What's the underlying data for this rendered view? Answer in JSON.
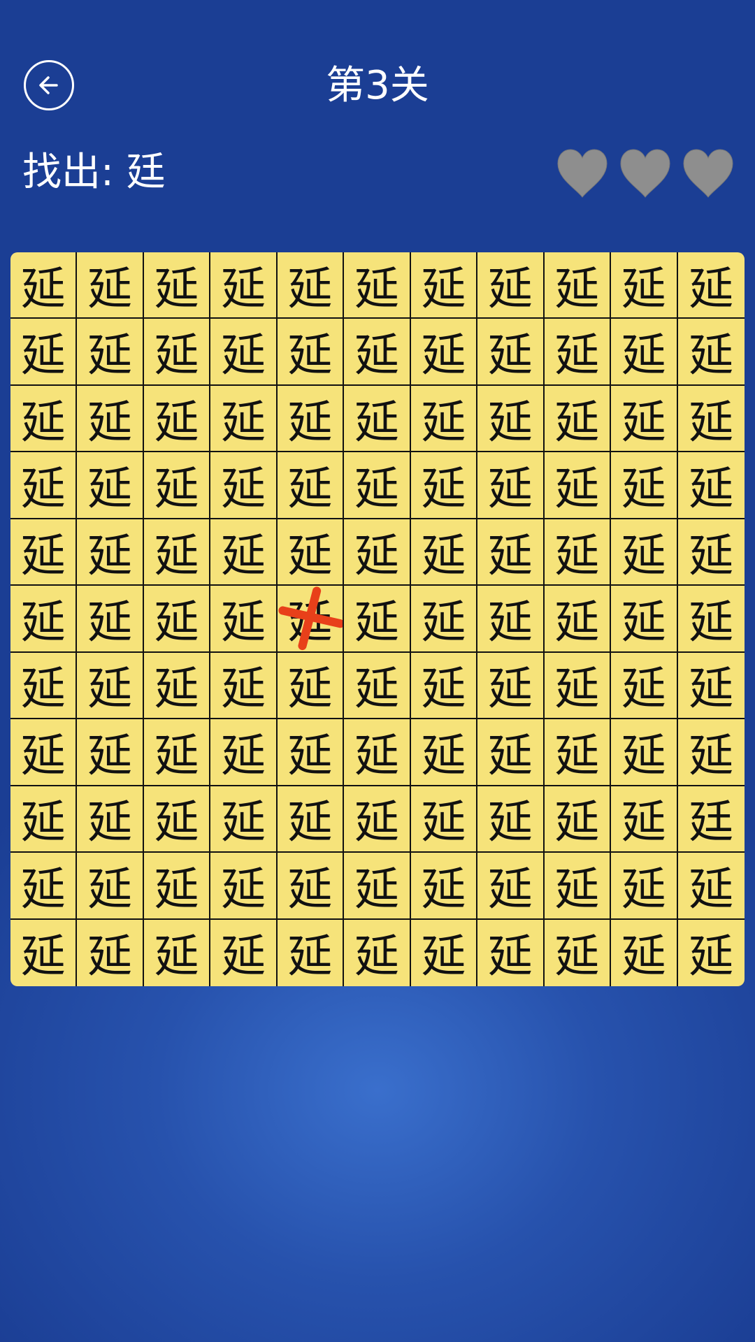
{
  "header": {
    "back_icon": "arrow-left-circle-icon",
    "title": "第3关"
  },
  "prompt": {
    "label": "找出: 廷",
    "target": "廷"
  },
  "lives": {
    "total": 3,
    "icon": "heart-icon",
    "color": "#8e8e8e"
  },
  "grid": {
    "rows": 11,
    "cols": 11,
    "base_char": "延",
    "target_char": "廷",
    "cells": [
      [
        "延",
        "延",
        "延",
        "延",
        "延",
        "延",
        "延",
        "延",
        "延",
        "延",
        "延"
      ],
      [
        "延",
        "延",
        "延",
        "延",
        "延",
        "延",
        "延",
        "延",
        "延",
        "延",
        "延"
      ],
      [
        "延",
        "延",
        "延",
        "延",
        "延",
        "延",
        "延",
        "延",
        "延",
        "延",
        "延"
      ],
      [
        "延",
        "延",
        "延",
        "延",
        "延",
        "延",
        "延",
        "延",
        "延",
        "延",
        "延"
      ],
      [
        "延",
        "延",
        "延",
        "延",
        "延",
        "延",
        "延",
        "延",
        "延",
        "延",
        "延"
      ],
      [
        "延",
        "延",
        "延",
        "延",
        "延",
        "延",
        "延",
        "延",
        "延",
        "延",
        "延"
      ],
      [
        "延",
        "延",
        "延",
        "延",
        "延",
        "延",
        "延",
        "延",
        "延",
        "延",
        "延"
      ],
      [
        "延",
        "延",
        "延",
        "延",
        "延",
        "延",
        "延",
        "延",
        "延",
        "延",
        "延"
      ],
      [
        "延",
        "延",
        "延",
        "延",
        "延",
        "延",
        "延",
        "延",
        "延",
        "延",
        "廷"
      ],
      [
        "延",
        "延",
        "延",
        "延",
        "延",
        "延",
        "延",
        "延",
        "延",
        "延",
        "延"
      ],
      [
        "延",
        "延",
        "延",
        "延",
        "延",
        "延",
        "延",
        "延",
        "延",
        "延",
        "延"
      ]
    ],
    "wrong_marks": [
      {
        "row": 6,
        "col": 5
      }
    ],
    "cell_color": "#f6e37a",
    "mark_color": "#e8401a"
  }
}
